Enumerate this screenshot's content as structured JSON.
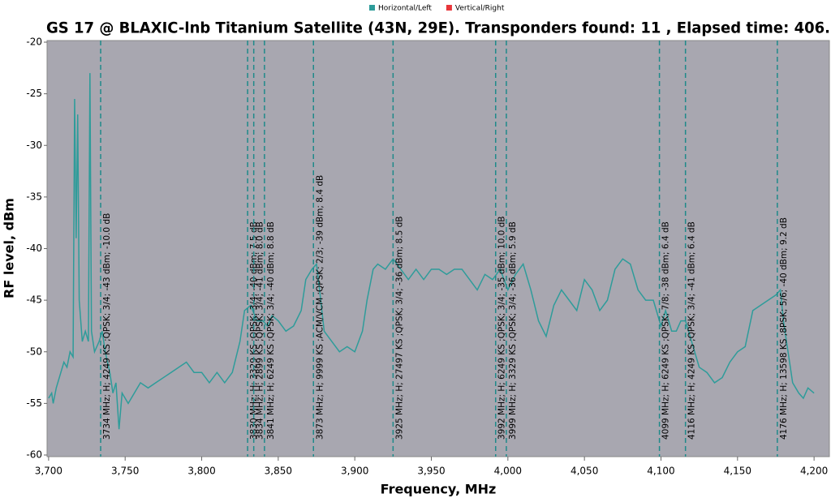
{
  "chart_data": {
    "type": "line",
    "title": "GS 17 @ BLAXIC-lnb Titanium Satellite (43N, 29E). Transponders found: 11 , Elapsed time: 406.",
    "x_label": "Frequency, MHz",
    "y_label": "RF level, dBm",
    "xlim": [
      3699,
      4210
    ],
    "ylim": [
      -60,
      -20
    ],
    "xticks": [
      {
        "value": 3700,
        "label": "3,700"
      },
      {
        "value": 3750,
        "label": "3,750"
      },
      {
        "value": 3800,
        "label": "3,800"
      },
      {
        "value": 3850,
        "label": "3,850"
      },
      {
        "value": 3900,
        "label": "3,900"
      },
      {
        "value": 3950,
        "label": "3,950"
      },
      {
        "value": 4000,
        "label": "4,000"
      },
      {
        "value": 4050,
        "label": "4,050"
      },
      {
        "value": 4100,
        "label": "4,100"
      },
      {
        "value": 4150,
        "label": "4,150"
      },
      {
        "value": 4200,
        "label": "4,200"
      }
    ],
    "yticks": [
      -20,
      -25,
      -30,
      -35,
      -40,
      -45,
      -50,
      -55,
      -60
    ],
    "legend": "top",
    "series": [
      {
        "name": "Horizontal/Left",
        "color": "#2e9c9a",
        "x": [
          3700,
          3702,
          3703,
          3705,
          3708,
          3710,
          3712,
          3714,
          3716,
          3717,
          3718,
          3719,
          3720,
          3722,
          3724,
          3726,
          3727,
          3728,
          3730,
          3733,
          3735,
          3737,
          3740,
          3742,
          3744,
          3746,
          3748,
          3752,
          3756,
          3760,
          3765,
          3770,
          3775,
          3780,
          3785,
          3790,
          3795,
          3800,
          3805,
          3810,
          3815,
          3820,
          3825,
          3828,
          3832,
          3836,
          3840,
          3843,
          3846,
          3850,
          3855,
          3860,
          3865,
          3868,
          3872,
          3875,
          3877,
          3880,
          3885,
          3890,
          3895,
          3900,
          3905,
          3908,
          3912,
          3915,
          3920,
          3925,
          3930,
          3935,
          3940,
          3945,
          3950,
          3955,
          3960,
          3965,
          3970,
          3975,
          3980,
          3985,
          3990,
          3995,
          4000,
          4005,
          4010,
          4015,
          4020,
          4025,
          4030,
          4035,
          4040,
          4045,
          4050,
          4055,
          4060,
          4065,
          4070,
          4075,
          4080,
          4085,
          4090,
          4095,
          4100,
          4103,
          4107,
          4110,
          4113,
          4116,
          4120,
          4125,
          4130,
          4135,
          4140,
          4145,
          4150,
          4155,
          4160,
          4165,
          4170,
          4175,
          4178,
          4180,
          4183,
          4186,
          4190,
          4193,
          4196,
          4200
        ],
        "values": [
          -54.5,
          -54,
          -55,
          -53.5,
          -52,
          -51,
          -51.5,
          -50,
          -50.5,
          -25.5,
          -39,
          -27,
          -45,
          -49,
          -48,
          -49,
          -23,
          -48,
          -50,
          -49,
          -48,
          -50,
          -52,
          -54,
          -53,
          -57.5,
          -54,
          -55,
          -54,
          -53,
          -53.5,
          -53,
          -52.5,
          -52,
          -51.5,
          -51,
          -52,
          -52,
          -53,
          -52,
          -53,
          -52,
          -49,
          -46,
          -45.5,
          -47,
          -47,
          -47.5,
          -46.5,
          -47,
          -48,
          -47.5,
          -46,
          -43,
          -42,
          -41.5,
          -44,
          -48,
          -49,
          -50,
          -49.5,
          -50,
          -48,
          -45,
          -42,
          -41.5,
          -42,
          -41,
          -42,
          -43,
          -42,
          -43,
          -42,
          -42,
          -42.5,
          -42,
          -42,
          -43,
          -44,
          -42.5,
          -43,
          -42,
          -44,
          -42.5,
          -41.5,
          -44,
          -47,
          -48.5,
          -45.5,
          -44,
          -45,
          -46,
          -43,
          -44,
          -46,
          -45,
          -42,
          -41,
          -41.5,
          -44,
          -45,
          -45,
          -47.5,
          -46,
          -48,
          -48,
          -47,
          -47,
          -49,
          -51.5,
          -52,
          -53,
          -52.5,
          -51,
          -50,
          -49.5,
          -46,
          -45.5,
          -45,
          -44.5,
          -44,
          -47,
          -50,
          -53,
          -54,
          -54.5,
          -53.5,
          -54
        ]
      },
      {
        "name": "Vertical/Right",
        "color": "#e8363a",
        "x": [],
        "values": []
      }
    ],
    "markers": [
      {
        "x": 3734,
        "label": "3734 MHz; H; 4249 KS ;QPSK; 3/4; -43 dBm; -10.0 dB"
      },
      {
        "x": 3830,
        "label": "3830 MHz; H; 3329 KS ;QPSK; 3/4; -40 dBm; 7.5 dB"
      },
      {
        "x": 3834,
        "label": "3834 MHz; H; 2899 KS ;QPSK; 3/4; -41 dBm; 8.0 dB"
      },
      {
        "x": 3841,
        "label": "3841 MHz; H; 6249 KS ;QPSK; 3/4; -40 dBm; 8.8 dB"
      },
      {
        "x": 3873,
        "label": "3873 MHz; H; 9999 KS ;ACM/VCM ;QPSK; 2/3; -39 dBm; 8.4 dB"
      },
      {
        "x": 3925,
        "label": "3925 MHz; H; 27497 KS ;QPSK; 3/4; -36 dBm; 8.5 dB"
      },
      {
        "x": 3992,
        "label": "3992 MHz; H; 6249 KS ;QPSK; 3/4; -35 dBm; 10.0 dB"
      },
      {
        "x": 3999,
        "label": "3999 MHz; H; 3329 KS ;QPSK; 3/4; -36 dBm; 5.9 dB"
      },
      {
        "x": 4099,
        "label": "4099 MHz; H; 6249 KS ;QPSK; 7/8; -38 dBm; 6.4 dB"
      },
      {
        "x": 4116,
        "label": "4116 MHz; H; 4249 KS ;QPSK; 3/4; -41 dBm; 6.4 dB"
      },
      {
        "x": 4176,
        "label": "4176 MHz; H; 13598 KS ;8PSK; 5/6; -40 dBm; 9.2 dB"
      }
    ]
  }
}
